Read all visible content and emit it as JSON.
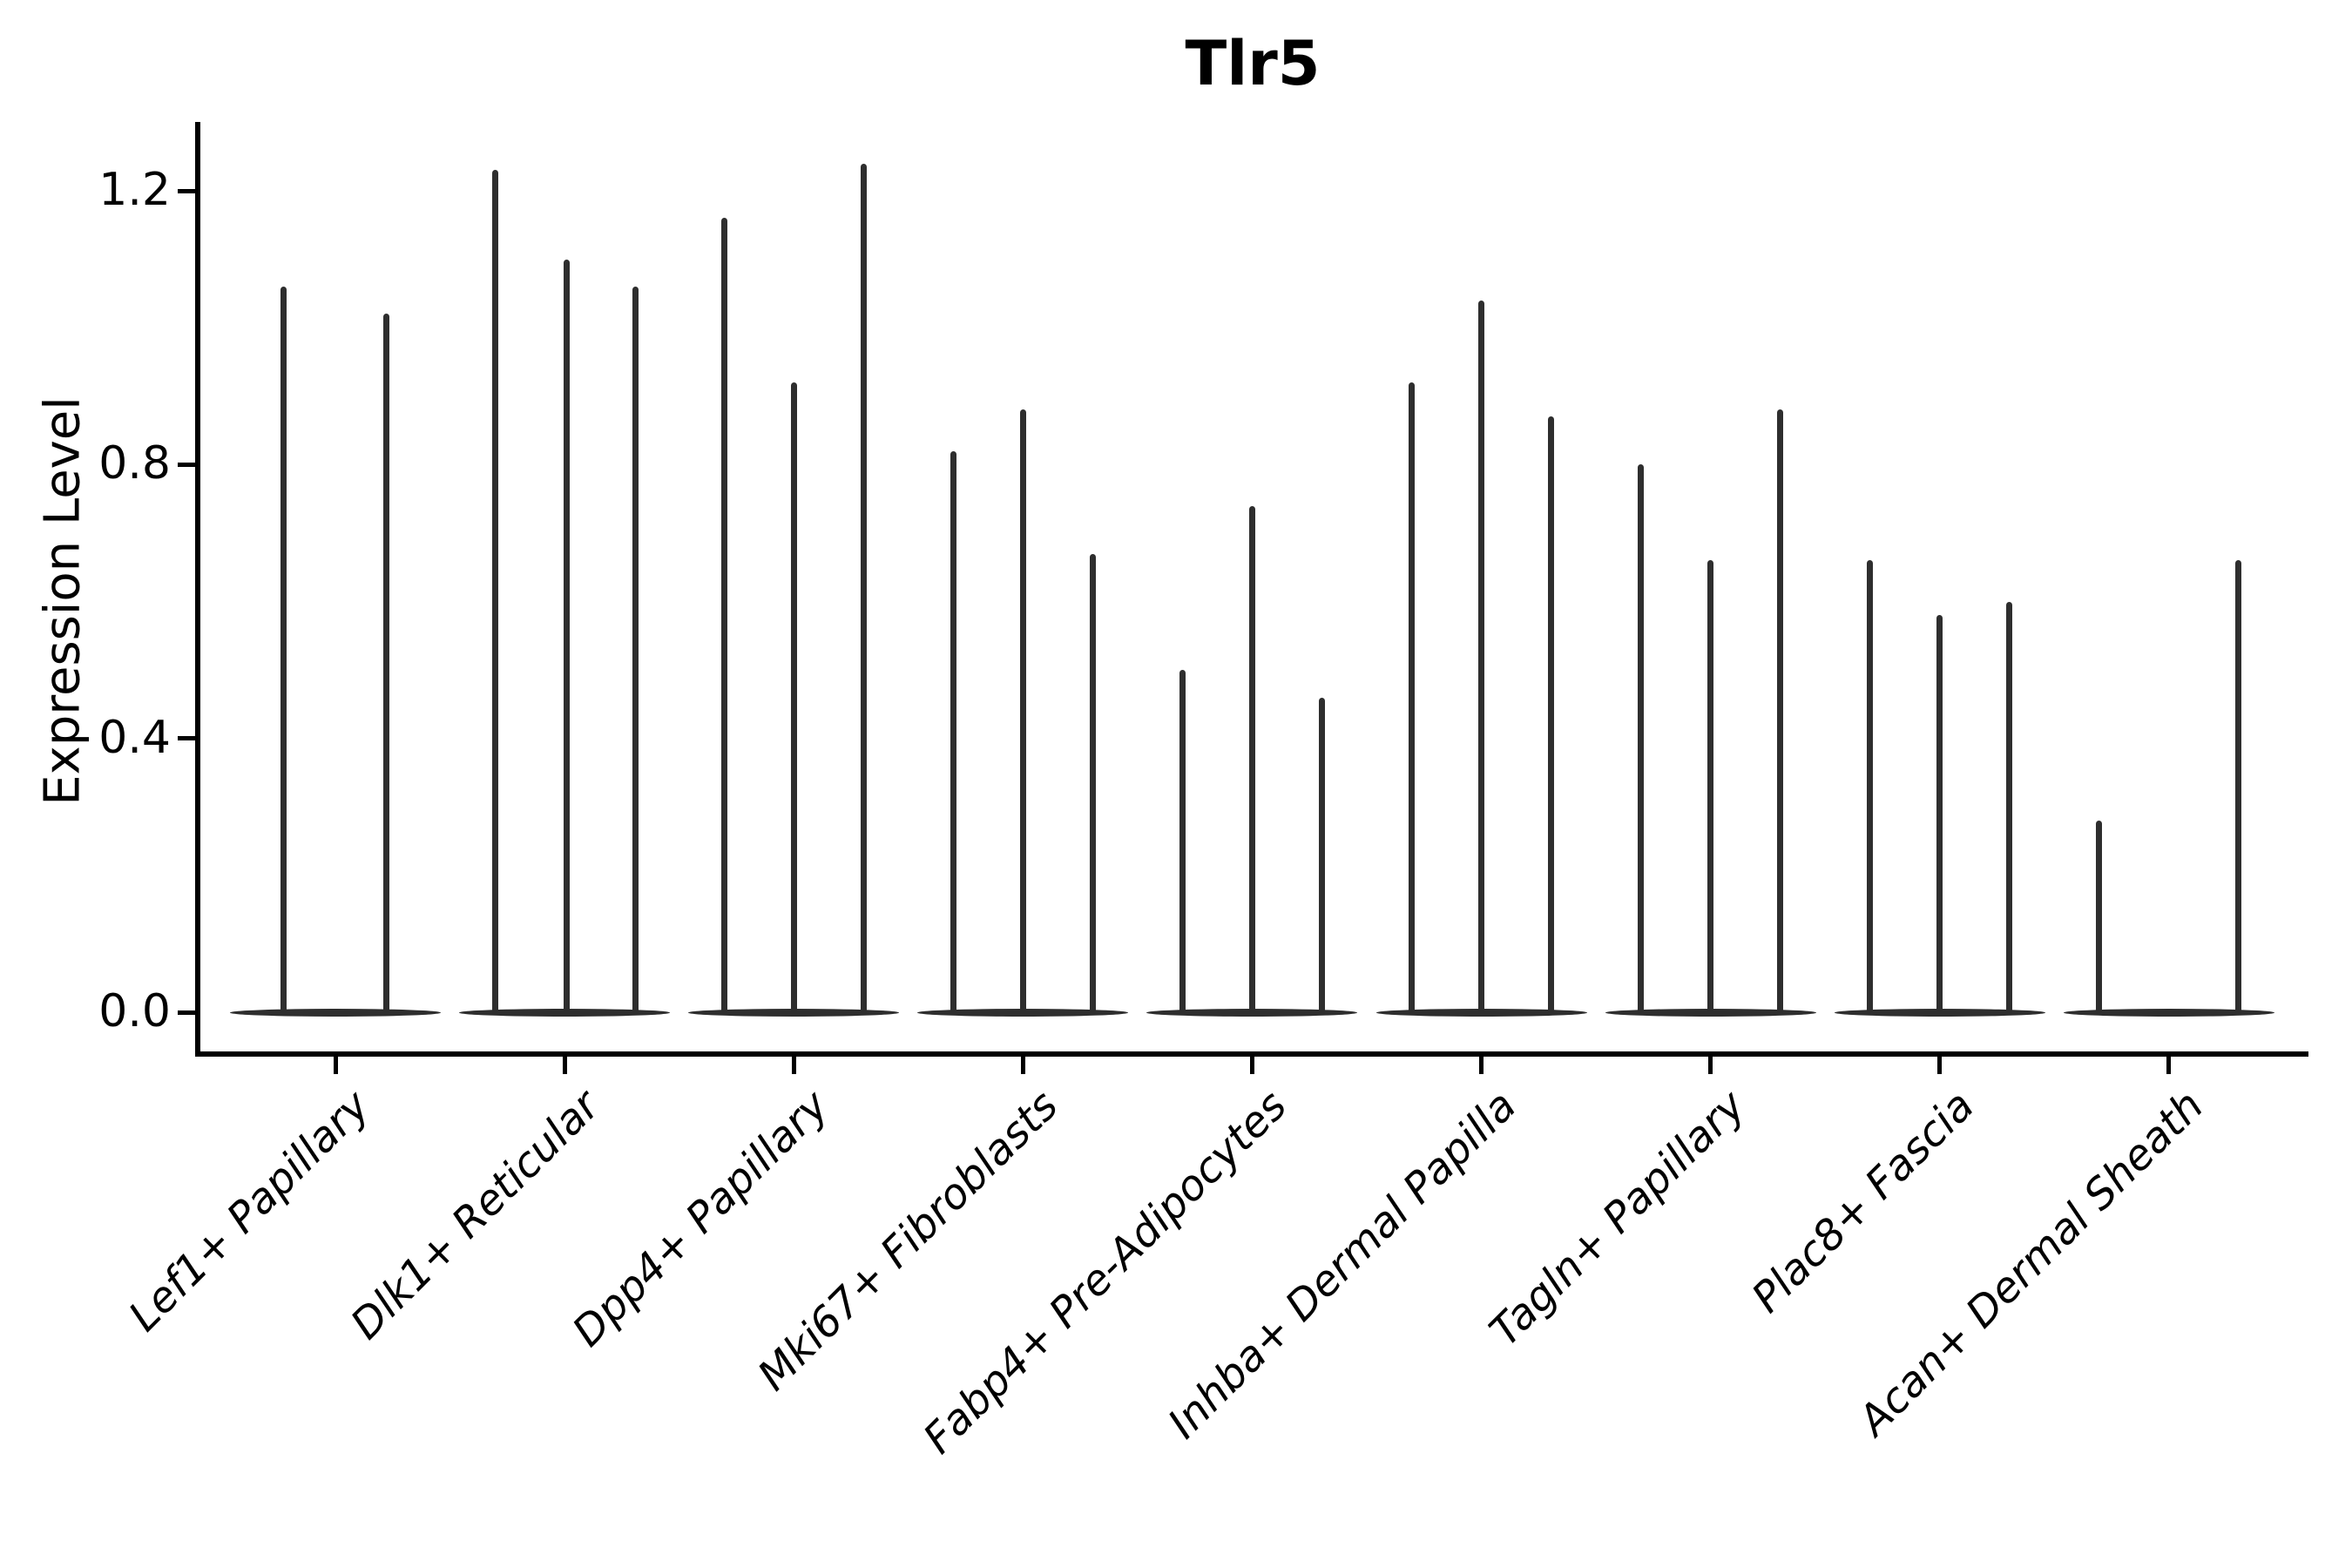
{
  "title": "Tlr5",
  "y_axis": {
    "label": "Expression Level",
    "tick_labels": [
      "0.0",
      "0.4",
      "0.8",
      "1.2"
    ]
  },
  "colors": {
    "violin": "#2e2e2e",
    "axis": "#000000",
    "background": "#ffffff"
  },
  "chart_data": {
    "type": "violin",
    "title": "Tlr5",
    "xlabel": "",
    "ylabel": "Expression Level",
    "ylim": [
      0,
      1.3
    ],
    "yticks": [
      0.0,
      0.4,
      0.8,
      1.2
    ],
    "grid": false,
    "legend": "none",
    "style_note": "violins are collapsed flat at 0 with one thin spike per violin rising to its maximum expression value; up to 3 violins per category",
    "categories": [
      "Lef1+ Papillary",
      "Dlk1+ Reticular",
      "Dpp4+ Papillary",
      "Mki67+ Fibroblasts",
      "Fabp4+ Pre-Adipocytes",
      "Inhba+ Dermal Papilla",
      "Tagln+ Papillary",
      "Plac8+ Fascia",
      "Acan+ Dermal Sheath"
    ],
    "series": [
      {
        "category": "Lef1+ Papillary",
        "spikes": [
          {
            "offset": -60,
            "max": 1.06
          },
          {
            "offset": 58,
            "max": 1.02
          }
        ]
      },
      {
        "category": "Dlk1+ Reticular",
        "spikes": [
          {
            "offset": -80,
            "max": 1.23
          },
          {
            "offset": 2,
            "max": 1.1
          },
          {
            "offset": 81,
            "max": 1.06
          }
        ]
      },
      {
        "category": "Dpp4+ Papillary",
        "spikes": [
          {
            "offset": -80,
            "max": 1.16
          },
          {
            "offset": 0,
            "max": 0.92
          },
          {
            "offset": 80,
            "max": 1.24
          }
        ]
      },
      {
        "category": "Mki67+ Fibroblasts",
        "spikes": [
          {
            "offset": -80,
            "max": 0.82
          },
          {
            "offset": 0,
            "max": 0.88
          },
          {
            "offset": 80,
            "max": 0.67
          }
        ]
      },
      {
        "category": "Fabp4+ Pre-Adipocytes",
        "spikes": [
          {
            "offset": -80,
            "max": 0.5
          },
          {
            "offset": 0,
            "max": 0.74
          },
          {
            "offset": 80,
            "max": 0.46
          }
        ]
      },
      {
        "category": "Inhba+ Dermal Papilla",
        "spikes": [
          {
            "offset": -80,
            "max": 0.92
          },
          {
            "offset": 0,
            "max": 1.04
          },
          {
            "offset": 80,
            "max": 0.87
          }
        ]
      },
      {
        "category": "Tagln+ Papillary",
        "spikes": [
          {
            "offset": -80,
            "max": 0.8
          },
          {
            "offset": 0,
            "max": 0.66
          },
          {
            "offset": 80,
            "max": 0.88
          }
        ]
      },
      {
        "category": "Plac8+ Fascia",
        "spikes": [
          {
            "offset": -80,
            "max": 0.66
          },
          {
            "offset": 0,
            "max": 0.58
          },
          {
            "offset": 80,
            "max": 0.6
          }
        ]
      },
      {
        "category": "Acan+ Dermal Sheath",
        "spikes": [
          {
            "offset": -80,
            "max": 0.28
          },
          {
            "offset": 80,
            "max": 0.66
          }
        ]
      }
    ]
  }
}
